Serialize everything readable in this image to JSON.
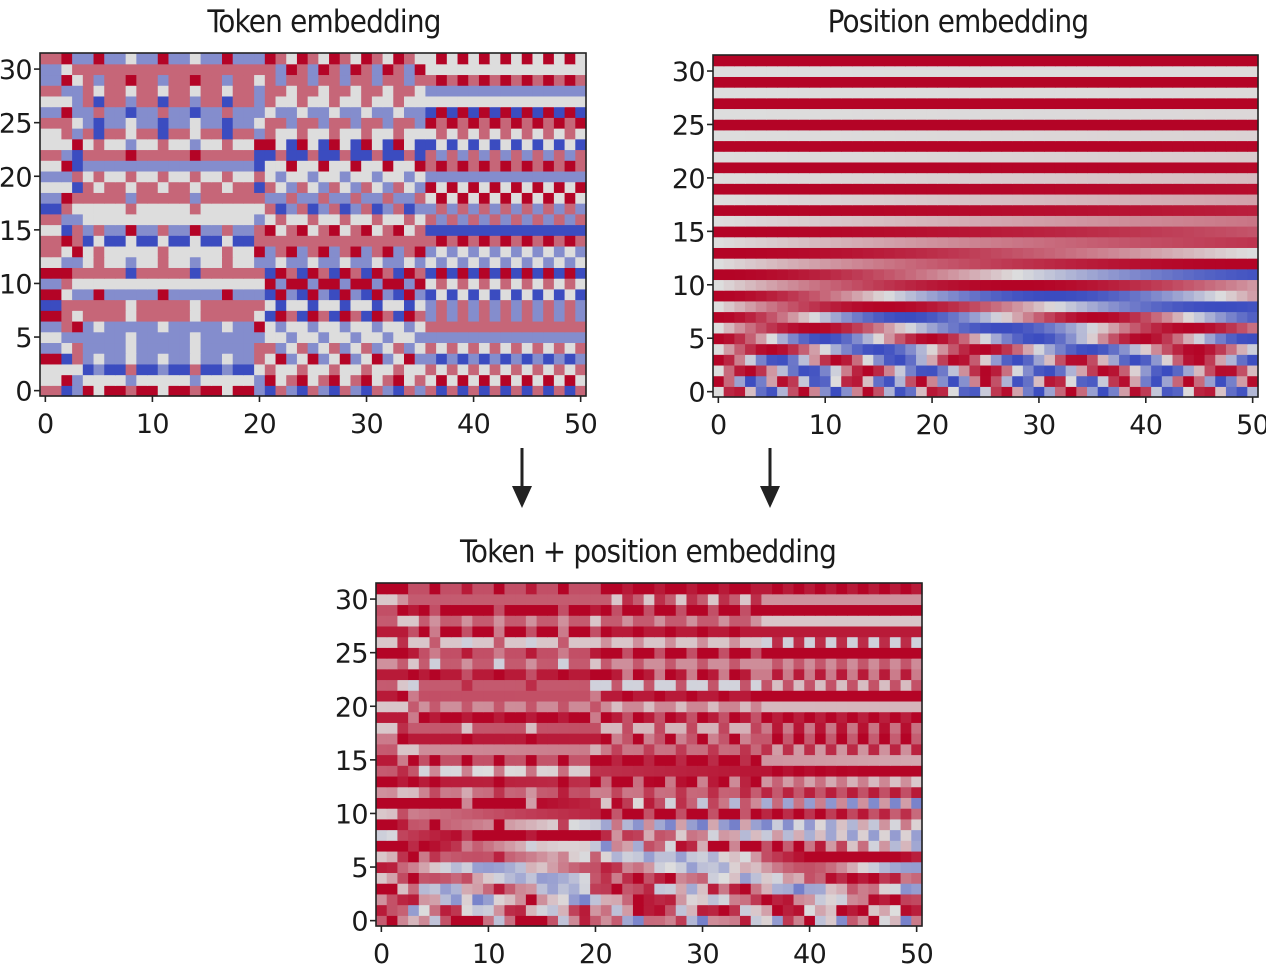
{
  "chart_data": [
    {
      "id": "token",
      "type": "heatmap",
      "title": "Token embedding",
      "xlim": [
        0,
        50
      ],
      "ylim": [
        0,
        31
      ],
      "rows": 32,
      "cols": 51,
      "xticks": [
        0,
        10,
        20,
        30,
        40,
        50
      ],
      "yticks": [
        0,
        5,
        10,
        15,
        20,
        25,
        30
      ],
      "colormap": "coolwarm",
      "color_low": "#3b4cc0",
      "color_mid": "#dddddd",
      "color_high": "#b40426"
    },
    {
      "id": "position",
      "type": "heatmap",
      "title": "Position embedding",
      "xlim": [
        0,
        50
      ],
      "ylim": [
        0,
        31
      ],
      "rows": 32,
      "cols": 51,
      "xticks": [
        0,
        10,
        20,
        30,
        40,
        50
      ],
      "yticks": [
        0,
        5,
        10,
        15,
        20,
        25,
        30
      ],
      "colormap": "coolwarm",
      "color_low": "#3b4cc0",
      "color_mid": "#dddddd",
      "color_high": "#b40426"
    },
    {
      "id": "combined",
      "type": "heatmap",
      "title": "Token + position embedding",
      "xlim": [
        0,
        50
      ],
      "ylim": [
        0,
        31
      ],
      "rows": 32,
      "cols": 51,
      "xticks": [
        0,
        10,
        20,
        30,
        40,
        50
      ],
      "yticks": [
        0,
        5,
        10,
        15,
        20,
        25,
        30
      ],
      "colormap": "coolwarm",
      "color_low": "#3b4cc0",
      "color_mid": "#dddddd",
      "color_high": "#b40426"
    }
  ],
  "arrows": [
    {
      "from": "token",
      "to": "combined"
    },
    {
      "from": "position",
      "to": "combined"
    }
  ]
}
